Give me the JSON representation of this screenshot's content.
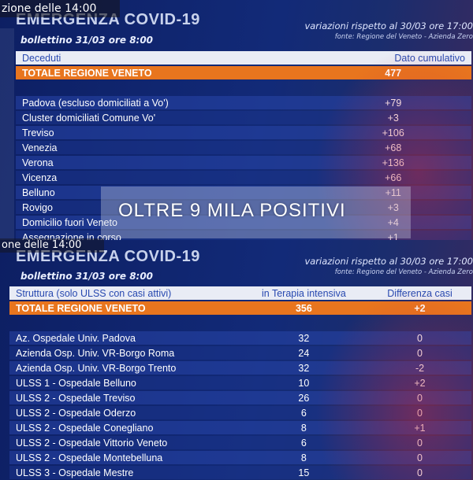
{
  "top": {
    "ticker": "zione delle 14:00",
    "headline": "EMERGENZA COVID-19",
    "variazioni": "variazioni rispetto al 30/03 ore 17:00",
    "fonte": "fonte: Regione del Veneto - Azienda Zero",
    "bollettino": "bollettino 31/03 ore 8:00",
    "col_left": "Deceduti",
    "col_right": "Dato cumulativo",
    "total": {
      "label": "TOTALE REGIONE VENETO",
      "value": "477"
    },
    "rows": [
      {
        "label": "Padova (escluso domiciliati a Vo')",
        "value": "+79"
      },
      {
        "label": "Cluster domiciliati Comune Vo'",
        "value": "+3"
      },
      {
        "label": "Treviso",
        "value": "+106"
      },
      {
        "label": "Venezia",
        "value": "+68"
      },
      {
        "label": "Verona",
        "value": "+136"
      },
      {
        "label": "Vicenza",
        "value": "+66"
      },
      {
        "label": "Belluno",
        "value": "+11"
      },
      {
        "label": "Rovigo",
        "value": "+3"
      },
      {
        "label": "Domicilio fuori Veneto",
        "value": "+4"
      },
      {
        "label": "Assegnazione in corso",
        "value": "+1"
      }
    ],
    "overlay": "OLTRE 9 MILA POSITIVI"
  },
  "bottom": {
    "ticker": "one delle 14:00",
    "headline": "EMERGENZA COVID-19",
    "variazioni": "variazioni rispetto al 30/03 ore 17:00",
    "fonte": "fonte: Regione del Veneto - Azienda Zero",
    "bollettino": "bollettino 31/03 ore 8:00",
    "col_1": "Struttura (solo ULSS con casi attivi)",
    "col_2": "in Terapia intensiva",
    "col_3": "Differenza casi",
    "total": {
      "label": "TOTALE REGIONE VENETO",
      "value": "356",
      "diff": "+2"
    },
    "rows": [
      {
        "label": "Az. Ospedale Univ. Padova",
        "value": "32",
        "diff": "0"
      },
      {
        "label": "Azienda Osp. Univ. VR-Borgo Roma",
        "value": "24",
        "diff": "0"
      },
      {
        "label": "Azienda Osp. Univ. VR-Borgo Trento",
        "value": "32",
        "diff": "-2"
      },
      {
        "label": "ULSS 1 - Ospedale Belluno",
        "value": "10",
        "diff": "+2"
      },
      {
        "label": "ULSS 2 - Ospedale Treviso",
        "value": "26",
        "diff": "0"
      },
      {
        "label": "ULSS 2 - Ospedale Oderzo",
        "value": "6",
        "diff": "0"
      },
      {
        "label": "ULSS 2 - Ospedale Conegliano",
        "value": "8",
        "diff": "+1"
      },
      {
        "label": "ULSS 2 - Ospedale Vittorio Veneto",
        "value": "6",
        "diff": "0"
      },
      {
        "label": "ULSS 2 - Ospedale Montebelluna",
        "value": "8",
        "diff": "0"
      },
      {
        "label": "ULSS 3 - Ospedale Mestre",
        "value": "15",
        "diff": "0"
      }
    ]
  }
}
